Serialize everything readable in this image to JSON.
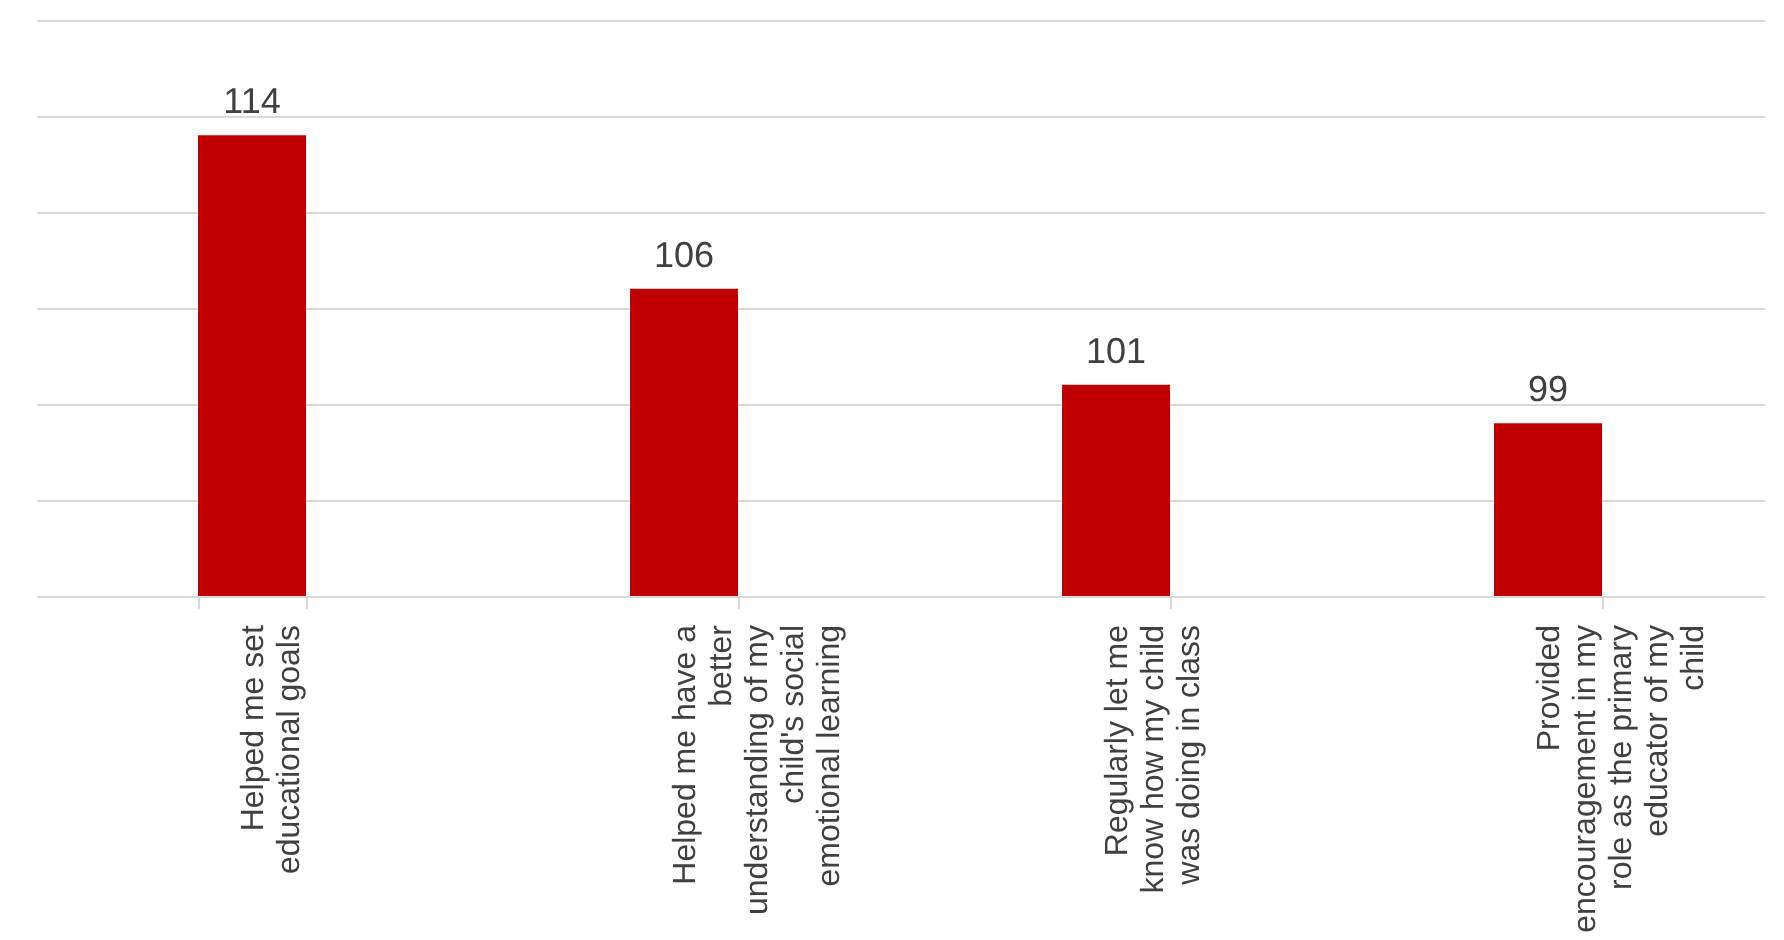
{
  "chart_data": {
    "type": "bar",
    "categories": [
      "Helped me set educational goals",
      "Helped me have a better understanding of my child's social emotional learning",
      "Regularly let me know how my child was doing in class",
      "Provided encouragement in my role as the primary educator of my child"
    ],
    "values": [
      114,
      106,
      101,
      99
    ],
    "color": "#c00000",
    "ylim": [
      90,
      120
    ],
    "yticks": [
      {
        "value": 90,
        "label": null
      },
      {
        "value": 95,
        "label": null
      },
      {
        "value": 100,
        "label": null
      },
      {
        "value": 105,
        "label": null
      },
      {
        "value": 110,
        "label": null
      },
      {
        "value": 115,
        "label": null
      },
      {
        "value": 120,
        "label": null
      }
    ],
    "grid": "y",
    "tick_labels": "x",
    "data_labels": true
  }
}
